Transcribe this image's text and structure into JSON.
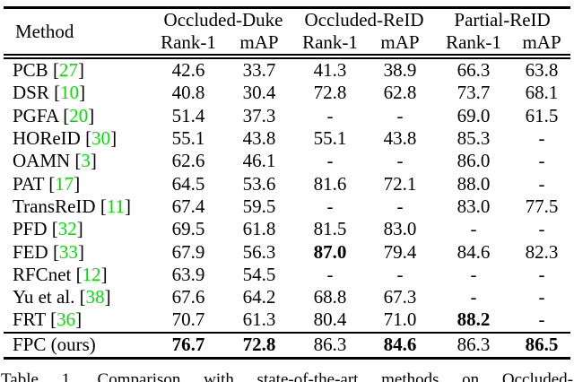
{
  "colors": {
    "citation": "#00E000",
    "text": "#000000",
    "background": "#ffffff"
  },
  "table": {
    "method_header": "Method",
    "groups": [
      "Occluded-Duke",
      "Occluded-ReID",
      "Partial-ReID"
    ],
    "sub_headers": [
      "Rank-1",
      "mAP",
      "Rank-1",
      "mAP",
      "Rank-1",
      "mAP"
    ],
    "rows": [
      {
        "method": "PCB",
        "cite": "27",
        "values": [
          "42.6",
          "33.7",
          "41.3",
          "38.9",
          "66.3",
          "63.8"
        ],
        "bold": [
          false,
          false,
          false,
          false,
          false,
          false
        ]
      },
      {
        "method": "DSR",
        "cite": "10",
        "values": [
          "40.8",
          "30.4",
          "72.8",
          "62.8",
          "73.7",
          "68.1"
        ],
        "bold": [
          false,
          false,
          false,
          false,
          false,
          false
        ]
      },
      {
        "method": "PGFA",
        "cite": "20",
        "values": [
          "51.4",
          "37.3",
          "-",
          "-",
          "69.0",
          "61.5"
        ],
        "bold": [
          false,
          false,
          false,
          false,
          false,
          false
        ]
      },
      {
        "method": "HOReID",
        "cite": "30",
        "values": [
          "55.1",
          "43.8",
          "55.1",
          "43.8",
          "85.3",
          "-"
        ],
        "bold": [
          false,
          false,
          false,
          false,
          false,
          false
        ]
      },
      {
        "method": "OAMN",
        "cite": "3",
        "values": [
          "62.6",
          "46.1",
          "-",
          "-",
          "86.0",
          "-"
        ],
        "bold": [
          false,
          false,
          false,
          false,
          false,
          false
        ]
      },
      {
        "method": "PAT",
        "cite": "17",
        "values": [
          "64.5",
          "53.6",
          "81.6",
          "72.1",
          "88.0",
          "-"
        ],
        "bold": [
          false,
          false,
          false,
          false,
          false,
          false
        ]
      },
      {
        "method": "TransReID",
        "cite": "11",
        "values": [
          "67.4",
          "59.5",
          "-",
          "-",
          "83.0",
          "77.5"
        ],
        "bold": [
          false,
          false,
          false,
          false,
          false,
          false
        ]
      },
      {
        "method": "PFD",
        "cite": "32",
        "values": [
          "69.5",
          "61.8",
          "81.5",
          "83.0",
          "-",
          "-"
        ],
        "bold": [
          false,
          false,
          false,
          false,
          false,
          false
        ]
      },
      {
        "method": "FED",
        "cite": "33",
        "values": [
          "67.9",
          "56.3",
          "87.0",
          "79.4",
          "84.6",
          "82.3"
        ],
        "bold": [
          false,
          false,
          true,
          false,
          false,
          false
        ]
      },
      {
        "method": "RFCnet",
        "cite": "12",
        "values": [
          "63.9",
          "54.5",
          "-",
          "-",
          "-",
          "-"
        ],
        "bold": [
          false,
          false,
          false,
          false,
          false,
          false
        ]
      },
      {
        "method": "Yu et al.",
        "cite": "38",
        "values": [
          "67.6",
          "64.2",
          "68.8",
          "67.3",
          "-",
          "-"
        ],
        "bold": [
          false,
          false,
          false,
          false,
          false,
          false
        ]
      },
      {
        "method": "FRT",
        "cite": "36",
        "values": [
          "70.7",
          "61.3",
          "80.4",
          "71.0",
          "88.2",
          "-"
        ],
        "bold": [
          false,
          false,
          false,
          false,
          true,
          false
        ]
      }
    ],
    "final_row": {
      "method": "FPC (ours)",
      "cite": null,
      "values": [
        "76.7",
        "72.8",
        "86.3",
        "84.6",
        "86.3",
        "86.5"
      ],
      "bold": [
        true,
        true,
        false,
        true,
        false,
        true
      ]
    }
  },
  "caption": "Table 1. Comparison with state-of-the-art methods on Occluded-"
}
